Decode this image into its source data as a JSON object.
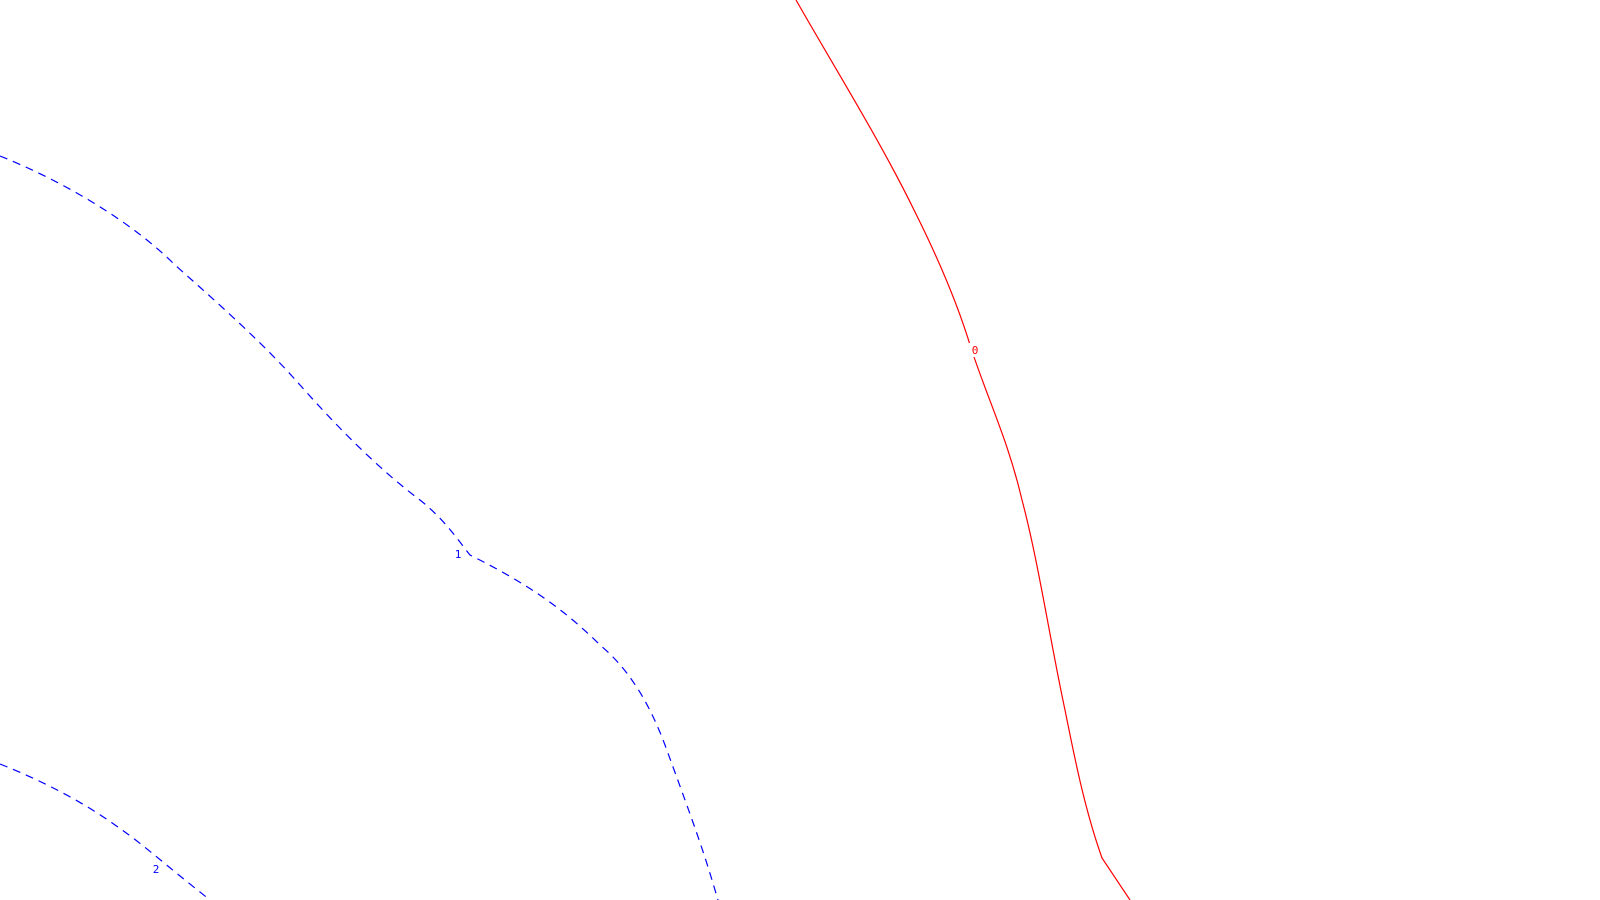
{
  "map": {
    "type": "contour-plot",
    "background_color": "#ffffff",
    "contours": [
      {
        "level": "0",
        "color": "#ff0000",
        "style": "solid"
      },
      {
        "level": "1",
        "color": "#0000ff",
        "style": "dashed"
      },
      {
        "level": "2",
        "color": "#0000ff",
        "style": "dashed"
      }
    ]
  }
}
